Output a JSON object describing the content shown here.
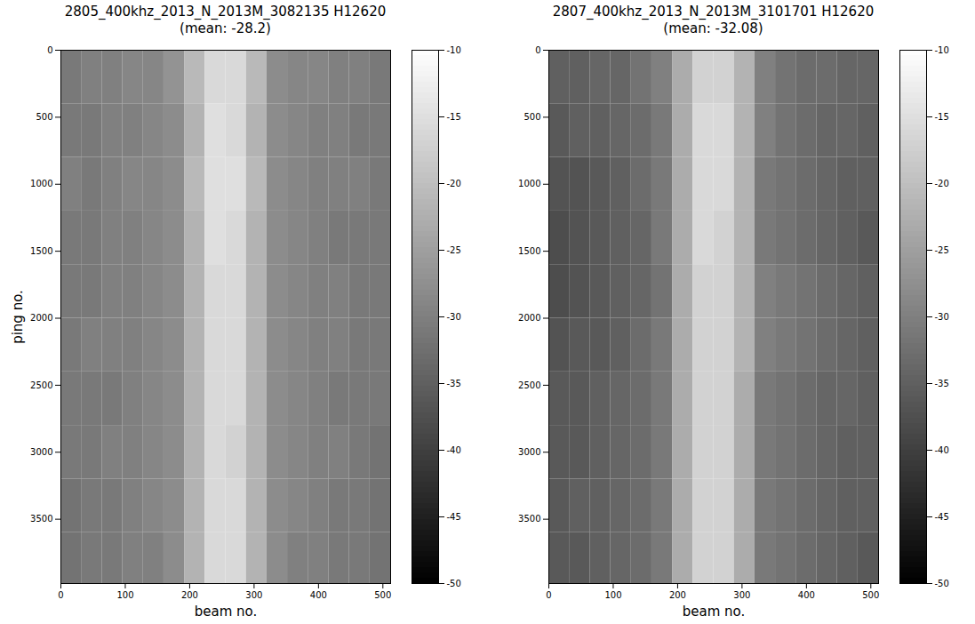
{
  "chart_data": [
    {
      "type": "heatmap",
      "title": "2805_400khz_2013_N_2013M_3082135 H12620",
      "subtitle": "(mean: -28.2)",
      "xlabel": "beam no.",
      "ylabel": "ping no.",
      "xlim": [
        0,
        512
      ],
      "xticks": [
        0,
        100,
        200,
        300,
        400,
        500
      ],
      "ylim": [
        3980,
        0
      ],
      "yticks": [
        0,
        500,
        1000,
        1500,
        2000,
        2500,
        3000,
        3500
      ],
      "x_bins": [
        0,
        32,
        64,
        96,
        128,
        160,
        192,
        224,
        256,
        288,
        320,
        352,
        384,
        416,
        448,
        480,
        512
      ],
      "y_bins": [
        0,
        400,
        800,
        1200,
        1600,
        2000,
        2400,
        2800,
        3200,
        3600,
        3980
      ],
      "cells": [
        [
          -31,
          -30,
          -30,
          -29,
          -29,
          -27,
          -21,
          -16,
          -16,
          -21,
          -28,
          -29,
          -29,
          -30,
          -30,
          -31
        ],
        [
          -31,
          -31,
          -30,
          -30,
          -29,
          -28,
          -22,
          -15,
          -16,
          -22,
          -28,
          -29,
          -30,
          -30,
          -31,
          -31
        ],
        [
          -30,
          -31,
          -30,
          -29,
          -29,
          -28,
          -21,
          -15,
          -15,
          -21,
          -28,
          -29,
          -30,
          -30,
          -30,
          -31
        ],
        [
          -31,
          -31,
          -30,
          -30,
          -29,
          -28,
          -22,
          -15,
          -16,
          -22,
          -28,
          -29,
          -30,
          -31,
          -31,
          -31
        ],
        [
          -31,
          -31,
          -30,
          -30,
          -29,
          -28,
          -22,
          -16,
          -16,
          -22,
          -28,
          -29,
          -30,
          -30,
          -31,
          -31
        ],
        [
          -31,
          -30,
          -30,
          -30,
          -29,
          -28,
          -22,
          -16,
          -16,
          -22,
          -28,
          -29,
          -30,
          -30,
          -31,
          -31
        ],
        [
          -31,
          -31,
          -31,
          -30,
          -29,
          -28,
          -22,
          -16,
          -16,
          -22,
          -28,
          -29,
          -30,
          -31,
          -31,
          -31
        ],
        [
          -31,
          -31,
          -30,
          -30,
          -29,
          -28,
          -22,
          -16,
          -17,
          -22,
          -28,
          -29,
          -30,
          -30,
          -31,
          -32
        ],
        [
          -32,
          -31,
          -31,
          -30,
          -29,
          -28,
          -22,
          -16,
          -16,
          -22,
          -28,
          -29,
          -30,
          -31,
          -31,
          -32
        ],
        [
          -32,
          -31,
          -31,
          -30,
          -30,
          -28,
          -22,
          -16,
          -16,
          -22,
          -28,
          -30,
          -30,
          -31,
          -31,
          -32
        ]
      ],
      "color_range": [
        -50,
        -10
      ],
      "color_ticks": [
        -50,
        -45,
        -40,
        -35,
        -30,
        -25,
        -20,
        -15,
        -10
      ]
    },
    {
      "type": "heatmap",
      "title": "2807_400khz_2013_N_2013M_3101701 H12620",
      "subtitle": "(mean: -32.08)",
      "xlabel": "beam no.",
      "xlim": [
        0,
        512
      ],
      "xticks": [
        0,
        100,
        200,
        300,
        400,
        500
      ],
      "ylim": [
        3980,
        0
      ],
      "yticks": [
        0,
        500,
        1000,
        1500,
        2000,
        2500,
        3000,
        3500
      ],
      "x_bins": [
        0,
        32,
        64,
        96,
        128,
        160,
        192,
        224,
        256,
        288,
        320,
        352,
        384,
        416,
        448,
        480,
        512
      ],
      "y_bins": [
        0,
        400,
        800,
        1200,
        1600,
        2000,
        2400,
        2800,
        3200,
        3600,
        3980
      ],
      "cells": [
        [
          -35,
          -35,
          -34,
          -34,
          -32,
          -30,
          -23,
          -17,
          -17,
          -22,
          -30,
          -32,
          -33,
          -33,
          -34,
          -34
        ],
        [
          -36,
          -35,
          -35,
          -34,
          -33,
          -31,
          -23,
          -16,
          -16,
          -22,
          -30,
          -32,
          -33,
          -34,
          -34,
          -35
        ],
        [
          -37,
          -37,
          -36,
          -35,
          -33,
          -31,
          -23,
          -16,
          -16,
          -22,
          -31,
          -32,
          -33,
          -34,
          -35,
          -35
        ],
        [
          -38,
          -37,
          -36,
          -35,
          -34,
          -31,
          -23,
          -16,
          -17,
          -22,
          -31,
          -32,
          -33,
          -34,
          -35,
          -36
        ],
        [
          -38,
          -37,
          -36,
          -35,
          -34,
          -32,
          -23,
          -17,
          -17,
          -22,
          -30,
          -31,
          -32,
          -33,
          -34,
          -35
        ],
        [
          -37,
          -36,
          -36,
          -35,
          -33,
          -31,
          -23,
          -17,
          -17,
          -22,
          -30,
          -31,
          -32,
          -33,
          -34,
          -35
        ],
        [
          -36,
          -36,
          -35,
          -34,
          -33,
          -31,
          -23,
          -17,
          -17,
          -23,
          -31,
          -32,
          -33,
          -34,
          -34,
          -35
        ],
        [
          -36,
          -36,
          -35,
          -34,
          -33,
          -31,
          -23,
          -17,
          -17,
          -23,
          -31,
          -32,
          -33,
          -34,
          -35,
          -35
        ],
        [
          -36,
          -35,
          -35,
          -34,
          -33,
          -31,
          -23,
          -17,
          -17,
          -23,
          -31,
          -32,
          -33,
          -34,
          -35,
          -35
        ],
        [
          -36,
          -36,
          -35,
          -34,
          -33,
          -31,
          -23,
          -17,
          -17,
          -23,
          -31,
          -32,
          -33,
          -34,
          -35,
          -36
        ]
      ],
      "color_range": [
        -50,
        -10
      ],
      "color_ticks": [
        -50,
        -45,
        -40,
        -35,
        -30,
        -25,
        -20,
        -15,
        -10
      ]
    }
  ]
}
